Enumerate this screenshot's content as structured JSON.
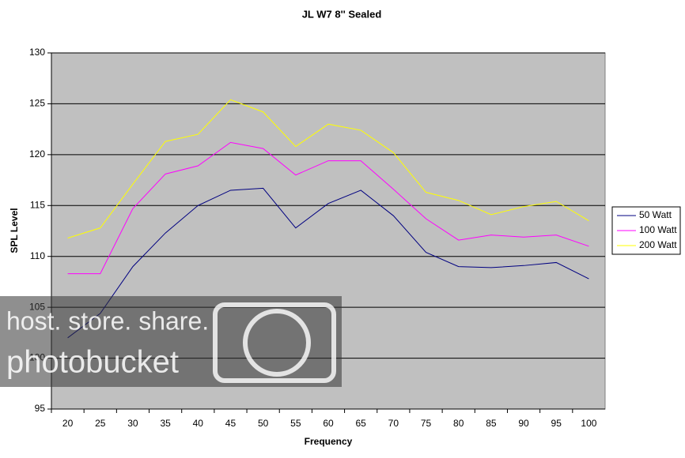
{
  "chart_data": {
    "type": "line",
    "title": "JL W7 8'' Sealed",
    "x_label": "Frequency",
    "y_label": "SPL Level",
    "categories": [
      "20",
      "25",
      "30",
      "35",
      "40",
      "45",
      "50",
      "55",
      "60",
      "65",
      "70",
      "75",
      "80",
      "85",
      "90",
      "95",
      "100"
    ],
    "series": [
      {
        "name": "50 Watt",
        "color": "#000080",
        "values": [
          102.0,
          104.4,
          109.0,
          112.3,
          115.0,
          116.5,
          116.7,
          112.8,
          115.2,
          116.5,
          114.0,
          110.4,
          109.0,
          108.9,
          109.1,
          109.4,
          107.8
        ]
      },
      {
        "name": "100 Watt",
        "color": "#ff00ff",
        "values": [
          108.3,
          108.3,
          114.7,
          118.1,
          118.9,
          121.2,
          120.6,
          118.0,
          119.4,
          119.4,
          116.6,
          113.7,
          111.6,
          112.1,
          111.9,
          112.1,
          111.0
        ]
      },
      {
        "name": "200 Watt",
        "color": "#ffff00",
        "values": [
          111.8,
          112.8,
          117.1,
          121.3,
          122.0,
          125.4,
          124.2,
          120.8,
          123.0,
          122.4,
          120.2,
          116.3,
          115.5,
          114.1,
          114.9,
          115.4,
          113.5
        ]
      }
    ],
    "ylim": [
      95,
      130
    ],
    "yticks": [
      95,
      100,
      105,
      110,
      115,
      120,
      125,
      130
    ],
    "grid": true,
    "legend": "right"
  },
  "watermark": {
    "line1": "host. store. share.",
    "line2": "photobucket"
  }
}
